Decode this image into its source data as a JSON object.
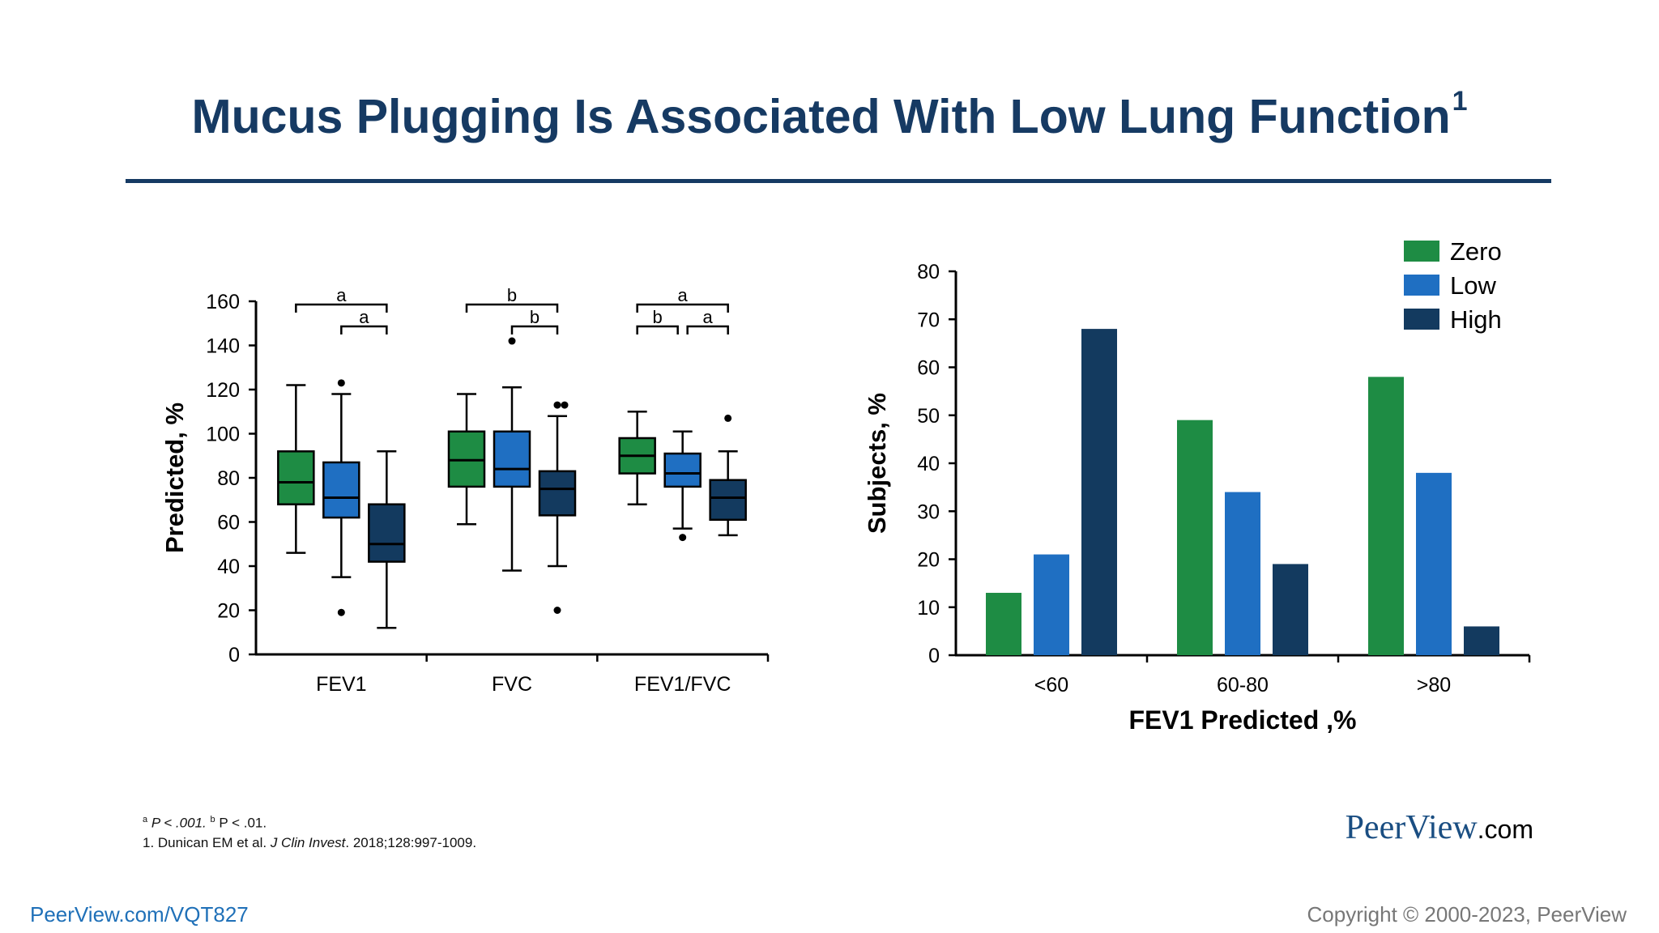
{
  "slide": {
    "title": "Mucus Plugging Is Associated With Low Lung Function",
    "title_sup": "1",
    "title_color": "#163a63"
  },
  "chart_data": [
    {
      "type": "boxplot",
      "ylabel": "Predicted, %",
      "ylim": [
        0,
        160
      ],
      "yticks": [
        0,
        20,
        40,
        60,
        80,
        100,
        120,
        140,
        160
      ],
      "categories": [
        "FEV1",
        "FVC",
        "FEV1/FVC"
      ],
      "series_colors": [
        "#1e8c44",
        "#1f6fc2",
        "#133a5f"
      ],
      "groups": [
        {
          "category": "FEV1",
          "boxes": [
            {
              "whisker_low": 46,
              "q1": 68,
              "median": 78,
              "q3": 92,
              "whisker_high": 122,
              "outliers": []
            },
            {
              "whisker_low": 35,
              "q1": 62,
              "median": 71,
              "q3": 87,
              "whisker_high": 118,
              "outliers": [
                19,
                123
              ]
            },
            {
              "whisker_low": 12,
              "q1": 42,
              "median": 50,
              "q3": 68,
              "whisker_high": 92,
              "outliers": []
            }
          ],
          "brackets": [
            {
              "from": 0,
              "to": 2,
              "level": 0,
              "label": "a"
            },
            {
              "from": 1,
              "to": 2,
              "level": 1,
              "label": "a"
            }
          ]
        },
        {
          "category": "FVC",
          "boxes": [
            {
              "whisker_low": 59,
              "q1": 76,
              "median": 88,
              "q3": 101,
              "whisker_high": 118,
              "outliers": []
            },
            {
              "whisker_low": 38,
              "q1": 76,
              "median": 84,
              "q3": 101,
              "whisker_high": 121,
              "outliers": [
                142
              ]
            },
            {
              "whisker_low": 40,
              "q1": 63,
              "median": 75,
              "q3": 83,
              "whisker_high": 108,
              "outliers": [
                20,
                113,
                113
              ]
            }
          ],
          "brackets": [
            {
              "from": 0,
              "to": 2,
              "level": 0,
              "label": "b"
            },
            {
              "from": 1,
              "to": 2,
              "level": 1,
              "label": "b"
            }
          ]
        },
        {
          "category": "FEV1/FVC",
          "boxes": [
            {
              "whisker_low": 68,
              "q1": 82,
              "median": 90,
              "q3": 98,
              "whisker_high": 110,
              "outliers": []
            },
            {
              "whisker_low": 57,
              "q1": 76,
              "median": 82,
              "q3": 91,
              "whisker_high": 101,
              "outliers": [
                53
              ]
            },
            {
              "whisker_low": 54,
              "q1": 61,
              "median": 71,
              "q3": 79,
              "whisker_high": 92,
              "outliers": [
                107
              ]
            }
          ],
          "brackets": [
            {
              "from": 0,
              "to": 2,
              "level": 0,
              "label": "a"
            },
            {
              "from": 0,
              "to": 1,
              "level": 1,
              "label": "b"
            },
            {
              "from": 1,
              "to": 2,
              "level": 1,
              "label": "a"
            }
          ]
        }
      ]
    },
    {
      "type": "bar",
      "categories": [
        "<60",
        "60-80",
        ">80"
      ],
      "xlabel": "FEV1 Predicted ,%",
      "ylabel": "Subjects, %",
      "ylim": [
        0,
        80
      ],
      "yticks": [
        0,
        10,
        20,
        30,
        40,
        50,
        60,
        70,
        80
      ],
      "legend_position": "top-right",
      "series": [
        {
          "name": "Zero",
          "color": "#1e8c44",
          "values": [
            13,
            49,
            58
          ]
        },
        {
          "name": "Low",
          "color": "#1f6fc2",
          "values": [
            21,
            34,
            38
          ]
        },
        {
          "name": "High",
          "color": "#133a5f",
          "values": [
            68,
            19,
            6
          ]
        }
      ]
    }
  ],
  "footnotes": {
    "sig_a_sup": "a",
    "sig_a_text": " P < .001. ",
    "sig_b_sup": "b",
    "sig_b_text": " P < .01.",
    "ref_prefix": "1. Dunican EM et al. ",
    "ref_journal": "J Clin Invest",
    "ref_suffix": ". 2018;128:997-1009."
  },
  "brand": {
    "name": "PeerView",
    "suffix": ".com"
  },
  "footer": {
    "program_link": "PeerView.com/VQT827",
    "copyright": "Copyright © 2000-2023, PeerView"
  }
}
